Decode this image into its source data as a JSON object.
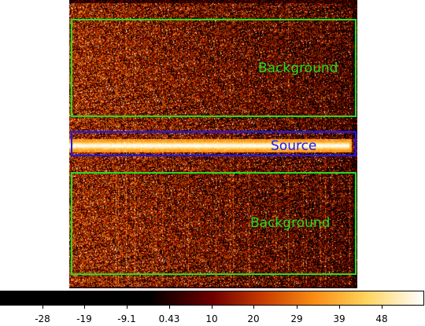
{
  "regions": {
    "background_top": {
      "label": "Background",
      "color": "#22dd22"
    },
    "source": {
      "label": "Source",
      "color": "#1a1aff"
    },
    "background_bottom": {
      "label": "Background",
      "color": "#22dd22"
    }
  },
  "colorbar": {
    "colormap": "heat",
    "ticks": [
      "-28",
      "-19",
      "-9.1",
      "0.43",
      "10",
      "20",
      "29",
      "39",
      "48"
    ]
  }
}
